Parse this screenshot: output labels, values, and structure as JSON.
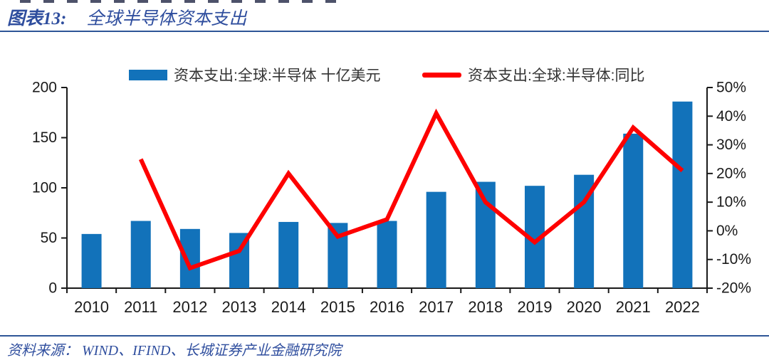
{
  "title": {
    "tag": "图表13:",
    "text": "全球半导体资本支出"
  },
  "source": {
    "text": "资料来源： WIND、IFIND、长城证券产业金融研究院"
  },
  "colors": {
    "bar": "#1272BA",
    "line": "#FE0000",
    "title_blue": "#2F4E9E",
    "rule_blue": "#2E5597",
    "axis": "#1A1A1A",
    "legend_text": "#333333",
    "background": "#FFFFFF"
  },
  "legend": {
    "items": [
      {
        "name": "capex",
        "label": "资本支出:全球:半导体 十亿美元",
        "swatch": "bar",
        "color": "#1272BA"
      },
      {
        "name": "yoy",
        "label": "资本支出:全球:半导体:同比",
        "swatch": "line",
        "color": "#FE0000"
      }
    ]
  },
  "chart_data": {
    "type": "combo_bar_line",
    "title": "全球半导体资本支出",
    "categories": [
      "2010",
      "2011",
      "2012",
      "2013",
      "2014",
      "2015",
      "2016",
      "2017",
      "2018",
      "2019",
      "2020",
      "2021",
      "2022"
    ],
    "series": [
      {
        "name": "资本支出:全球:半导体 十亿美元",
        "type": "bar",
        "axis": "left",
        "color": "#1272BA",
        "unit": "十亿美元",
        "values": [
          54,
          67,
          59,
          55,
          66,
          65,
          67,
          96,
          106,
          102,
          113,
          154,
          186
        ]
      },
      {
        "name": "资本支出:全球:半导体:同比",
        "type": "line",
        "axis": "right",
        "color": "#FE0000",
        "unit": "%",
        "values": [
          null,
          25,
          -13,
          -7,
          20,
          -2,
          4,
          41,
          10,
          -4,
          10,
          36,
          21
        ]
      }
    ],
    "left_axis": {
      "range": [
        0,
        200
      ],
      "tick_values": [
        0,
        50,
        100,
        150,
        200
      ],
      "tick_labels": [
        "0",
        "50",
        "100",
        "150",
        "200"
      ]
    },
    "right_axis": {
      "range": [
        -20,
        50
      ],
      "tick_values": [
        -20,
        -10,
        0,
        10,
        20,
        30,
        40,
        50
      ],
      "tick_labels": [
        "-20%",
        "-10%",
        "0%",
        "10%",
        "20%",
        "30%",
        "40%",
        "50%"
      ]
    },
    "legend_position": "top",
    "grid": false
  }
}
